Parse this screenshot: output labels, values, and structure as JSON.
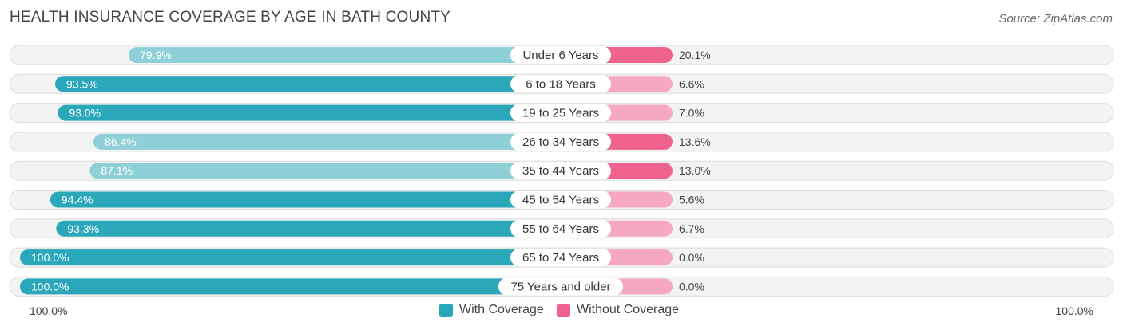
{
  "header": {
    "title": "HEALTH INSURANCE COVERAGE BY AGE IN BATH COUNTY",
    "source": "Source: ZipAtlas.com"
  },
  "colors": {
    "with_coverage": "#2aa7b8",
    "with_coverage_light": "#8fd0d8",
    "without_coverage": "#f0628e",
    "without_coverage_light": "#f6a8c2",
    "row_bg": "#eeeeee"
  },
  "chart_data": {
    "type": "bar",
    "orientation": "horizontal-diverging",
    "title": "HEALTH INSURANCE COVERAGE BY AGE IN BATH COUNTY",
    "categories": [
      "Under 6 Years",
      "6 to 18 Years",
      "19 to 25 Years",
      "26 to 34 Years",
      "35 to 44 Years",
      "45 to 54 Years",
      "55 to 64 Years",
      "65 to 74 Years",
      "75 Years and older"
    ],
    "series": [
      {
        "name": "With Coverage",
        "values": [
          79.9,
          93.5,
          93.0,
          86.4,
          87.1,
          94.4,
          93.3,
          100.0,
          100.0
        ],
        "labels": [
          "79.9%",
          "93.5%",
          "93.0%",
          "86.4%",
          "87.1%",
          "94.4%",
          "93.3%",
          "100.0%",
          "100.0%"
        ]
      },
      {
        "name": "Without Coverage",
        "values": [
          20.1,
          6.6,
          7.0,
          13.6,
          13.0,
          5.6,
          6.7,
          0.0,
          0.0
        ],
        "labels": [
          "20.1%",
          "6.6%",
          "7.0%",
          "13.6%",
          "13.0%",
          "5.6%",
          "6.7%",
          "0.0%",
          "0.0%"
        ]
      }
    ],
    "xlim": [
      0,
      100
    ],
    "axis_left_label": "100.0%",
    "axis_right_label": "100.0%",
    "legend": [
      "With Coverage",
      "Without Coverage"
    ],
    "legend_position": "bottom-center"
  }
}
